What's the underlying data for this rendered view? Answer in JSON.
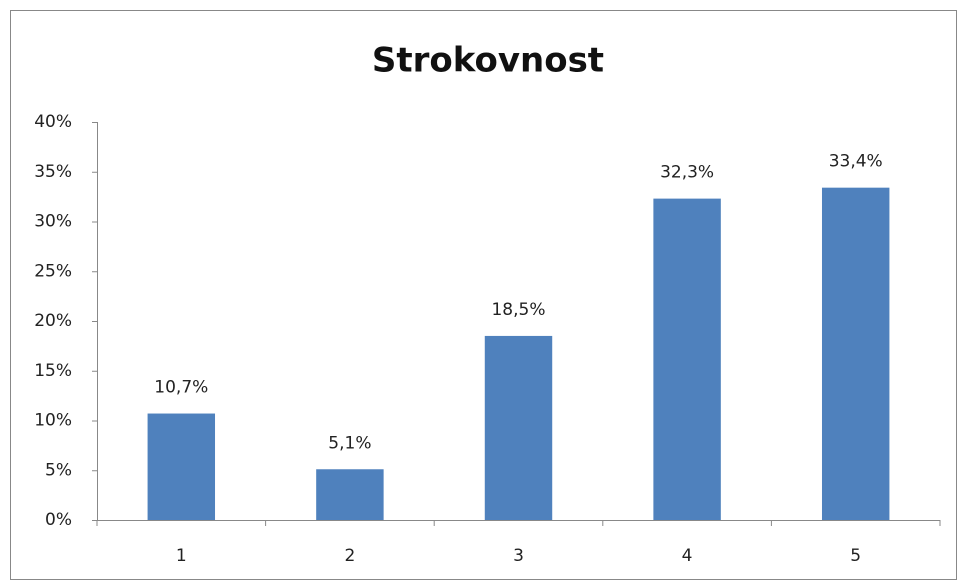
{
  "chart_data": {
    "type": "bar",
    "title": "Strokovnost",
    "categories": [
      "1",
      "2",
      "3",
      "4",
      "5"
    ],
    "values": [
      10.7,
      5.1,
      18.5,
      32.3,
      33.4
    ],
    "value_labels": [
      "10,7%",
      "5,1%",
      "18,5%",
      "32,3%",
      "33,4%"
    ],
    "color": "#4f81bd",
    "ylim": [
      0,
      40
    ],
    "yticks": [
      {
        "value": 0,
        "label": "0%"
      },
      {
        "value": 5,
        "label": "5%"
      },
      {
        "value": 10,
        "label": "10%"
      },
      {
        "value": 15,
        "label": "15%"
      },
      {
        "value": 20,
        "label": "20%"
      },
      {
        "value": 25,
        "label": "25%"
      },
      {
        "value": 30,
        "label": "30%"
      },
      {
        "value": 35,
        "label": "35%"
      },
      {
        "value": 40,
        "label": "40%"
      }
    ],
    "grid": false
  }
}
